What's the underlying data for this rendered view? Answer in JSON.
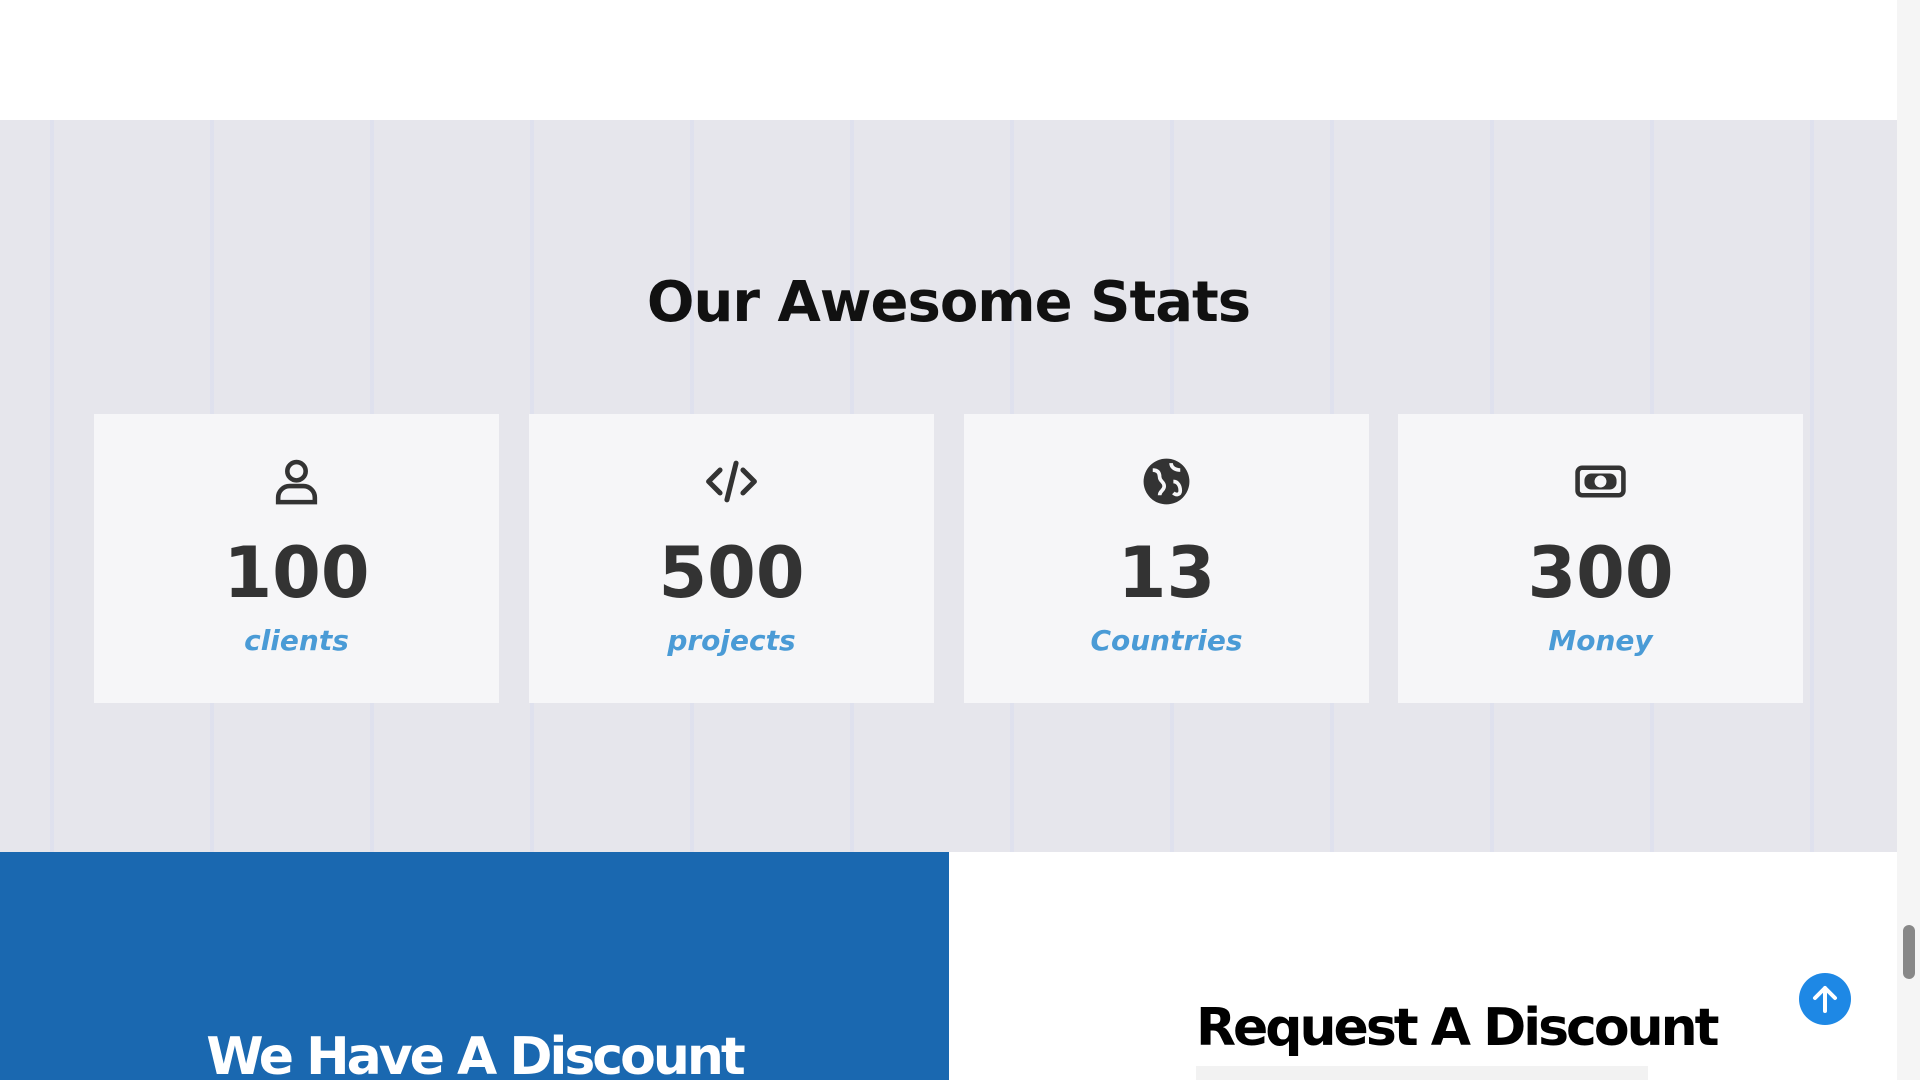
{
  "stats_section": {
    "title": "Our Awesome Stats",
    "stats": [
      {
        "value": 100,
        "label": "clients"
      },
      {
        "value": 500,
        "label": "projects"
      },
      {
        "value": 13,
        "label": "Countries"
      },
      {
        "value": 300,
        "label": "Money"
      }
    ]
  },
  "discount_section": {
    "left_title": "We Have A Discount",
    "right_title": "Request A Discount"
  }
}
